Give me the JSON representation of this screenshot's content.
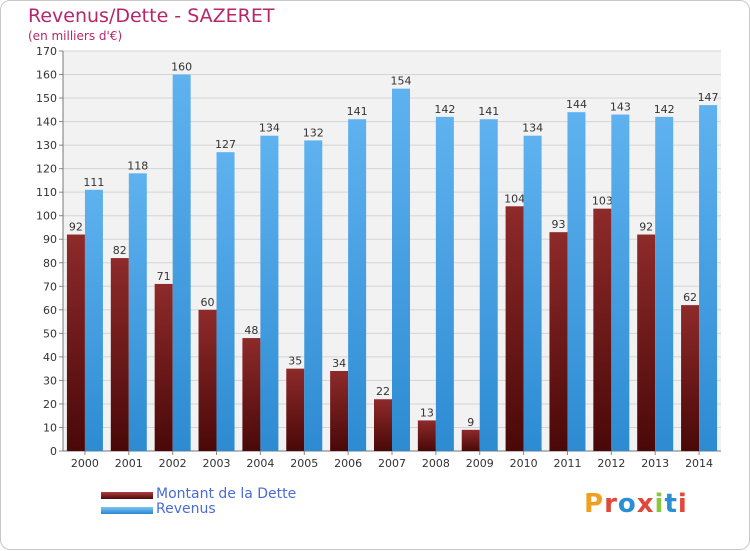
{
  "header": {
    "title": "Revenus/Dette - SAZERET",
    "subtitle": "(en milliers d'€)"
  },
  "legend": {
    "items": [
      {
        "label": "Montant de la Dette",
        "color": "#7a1a1a"
      },
      {
        "label": "Revenus",
        "color": "#4aa3e8"
      }
    ]
  },
  "logo": {
    "text": "Proxiti",
    "letter_colors": [
      "#f0a020",
      "#e0483c",
      "#2b8fd6",
      "#e0483c",
      "#8cc43c",
      "#2b8fd6",
      "#e0483c"
    ]
  },
  "chart_data": {
    "type": "bar",
    "title": "Revenus/Dette - SAZERET",
    "subtitle": "(en milliers d'€)",
    "categories": [
      "2000",
      "2001",
      "2002",
      "2003",
      "2004",
      "2005",
      "2006",
      "2007",
      "2008",
      "2009",
      "2010",
      "2011",
      "2012",
      "2013",
      "2014"
    ],
    "series": [
      {
        "name": "Montant de la Dette",
        "color": "#7a1a1a",
        "values": [
          92,
          82,
          71,
          60,
          48,
          35,
          34,
          22,
          13,
          9,
          104,
          93,
          103,
          92,
          62
        ]
      },
      {
        "name": "Revenus",
        "color": "#4aa3e8",
        "values": [
          111,
          118,
          160,
          127,
          134,
          132,
          141,
          154,
          142,
          141,
          134,
          144,
          143,
          142,
          147
        ]
      }
    ],
    "ylim": [
      0,
      170
    ],
    "yticks": [
      0,
      10,
      20,
      30,
      40,
      50,
      60,
      70,
      80,
      90,
      100,
      110,
      120,
      130,
      140,
      150,
      160,
      170
    ],
    "grid": true,
    "legend_position": "bottom-left"
  }
}
